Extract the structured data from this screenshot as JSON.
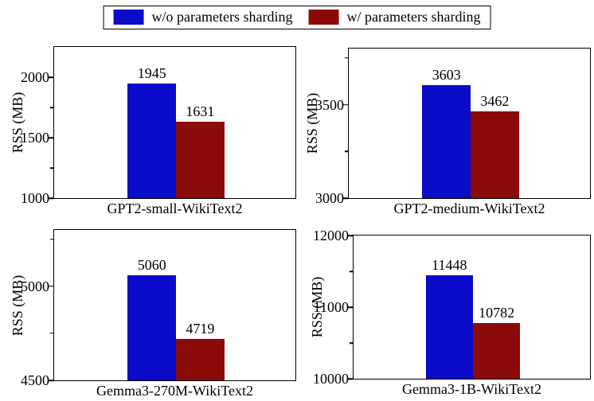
{
  "legend": {
    "items": [
      {
        "label": "w/o parameters sharding",
        "color": "#0b0bc8"
      },
      {
        "label": "w/ parameters sharding",
        "color": "#8b0a0a"
      }
    ],
    "position": "figure-top-center",
    "border": true
  },
  "chart_data": [
    {
      "type": "bar",
      "title": "",
      "xlabel": "GPT2-small-WikiText2",
      "ylabel": "RSS (MB)",
      "categories": [
        "GPT2-small-WikiText2"
      ],
      "series": [
        {
          "name": "w/o parameters sharding",
          "values": [
            1945
          ]
        },
        {
          "name": "w/ parameters sharding",
          "values": [
            1631
          ]
        }
      ],
      "data_labels": [
        1945,
        1631
      ],
      "ylim": [
        1000,
        2250
      ],
      "yticks": [
        1000,
        1500,
        2000
      ],
      "yticks_minor": [
        1250,
        1750
      ],
      "grid": false
    },
    {
      "type": "bar",
      "title": "",
      "xlabel": "GPT2-medium-WikiText2",
      "ylabel": "RSS (MB)",
      "categories": [
        "GPT2-medium-WikiText2"
      ],
      "series": [
        {
          "name": "w/o parameters sharding",
          "values": [
            3603
          ]
        },
        {
          "name": "w/ parameters sharding",
          "values": [
            3462
          ]
        }
      ],
      "data_labels": [
        3603,
        3462
      ],
      "ylim": [
        3000,
        3800
      ],
      "yticks": [
        3000,
        3500
      ],
      "yticks_minor": [
        3250,
        3750
      ],
      "grid": false
    },
    {
      "type": "bar",
      "title": "",
      "xlabel": "Gemma3-270M-WikiText2",
      "ylabel": "RSS (MB)",
      "categories": [
        "Gemma3-270M-WikiText2"
      ],
      "series": [
        {
          "name": "w/o parameters sharding",
          "values": [
            5060
          ]
        },
        {
          "name": "w/ parameters sharding",
          "values": [
            4719
          ]
        }
      ],
      "data_labels": [
        5060,
        4719
      ],
      "ylim": [
        4500,
        5300
      ],
      "yticks": [
        4500,
        5000
      ],
      "yticks_minor": [
        4750,
        5250
      ],
      "grid": false
    },
    {
      "type": "bar",
      "title": "",
      "xlabel": "Gemma3-1B-WikiText2",
      "ylabel": "RSS (MB)",
      "categories": [
        "Gemma3-1B-WikiText2"
      ],
      "series": [
        {
          "name": "w/o parameters sharding",
          "values": [
            11448
          ]
        },
        {
          "name": "w/ parameters sharding",
          "values": [
            10782
          ]
        }
      ],
      "data_labels": [
        11448,
        10782
      ],
      "ylim": [
        10000,
        12000
      ],
      "yticks": [
        10000,
        11000,
        12000
      ],
      "yticks_minor": [
        10500,
        11500
      ],
      "grid": false
    }
  ]
}
